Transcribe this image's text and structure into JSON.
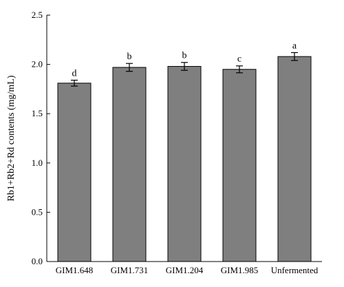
{
  "chart_data": {
    "type": "bar",
    "title": "",
    "xlabel": "",
    "ylabel": "Rb1+Rb2+Rd contents (mg/mL)",
    "ylim": [
      0,
      2.5
    ],
    "yticks": [
      "0.0",
      "0.5",
      "1.0",
      "1.5",
      "2.0",
      "2.5"
    ],
    "categories": [
      "GIM1.648",
      "GIM1.731",
      "GIM1.204",
      "GIM1.985",
      "Unfermented"
    ],
    "values": [
      1.81,
      1.97,
      1.98,
      1.95,
      2.08
    ],
    "errors": [
      0.03,
      0.04,
      0.04,
      0.035,
      0.04
    ],
    "significance_labels": [
      "d",
      "b",
      "b",
      "c",
      "a"
    ],
    "grid": false,
    "legend": "none",
    "bar_color": "#7f7f7f",
    "bar_edge_color": "#000000"
  }
}
